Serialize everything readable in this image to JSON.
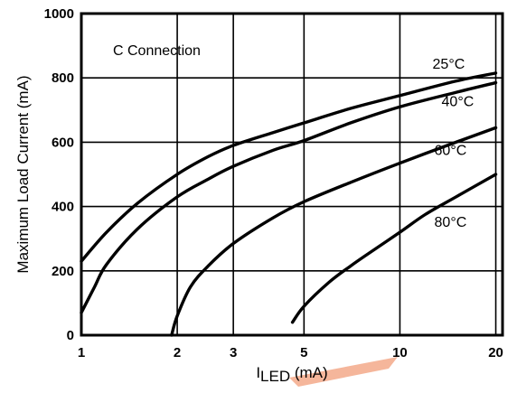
{
  "chart_data": {
    "type": "line",
    "xlabel_main": "I",
    "xlabel_sub": "LED",
    "xlabel_unit": " (mA)",
    "ylabel": "Maximum Load Current (mA)",
    "annotation": "C Connection",
    "x_scale": "log",
    "xlim": [
      1,
      21
    ],
    "ylim": [
      0,
      1000
    ],
    "x_ticks": [
      1,
      2,
      3,
      5,
      10,
      20
    ],
    "x_tick_labels": [
      "1",
      "2",
      "3",
      "5",
      "10",
      "20"
    ],
    "y_ticks": [
      0,
      200,
      400,
      600,
      800,
      1000
    ],
    "y_tick_labels": [
      "0",
      "200",
      "400",
      "600",
      "800",
      "1000"
    ],
    "grid": true,
    "series": [
      {
        "name": "25°C",
        "x": [
          1.0,
          1.2,
          1.5,
          2.0,
          2.5,
          3.0,
          4.0,
          5.0,
          7.0,
          10.0,
          15.0,
          20.0
        ],
        "y": [
          230,
          320,
          410,
          500,
          555,
          590,
          630,
          660,
          705,
          745,
          790,
          815
        ]
      },
      {
        "name": "40°C",
        "x": [
          1.0,
          1.1,
          1.2,
          1.5,
          2.0,
          2.5,
          3.0,
          4.0,
          5.0,
          7.0,
          10.0,
          15.0,
          20.0
        ],
        "y": [
          70,
          150,
          220,
          330,
          430,
          485,
          525,
          575,
          605,
          660,
          710,
          755,
          785
        ]
      },
      {
        "name": "60°C",
        "x": [
          1.92,
          2.0,
          2.2,
          2.5,
          3.0,
          4.0,
          5.0,
          7.0,
          10.0,
          15.0,
          20.0
        ],
        "y": [
          0,
          60,
          150,
          215,
          285,
          365,
          415,
          475,
          535,
          600,
          645
        ]
      },
      {
        "name": "80°C",
        "x": [
          4.6,
          5.0,
          6.0,
          7.0,
          8.0,
          10.0,
          12.0,
          15.0,
          20.0
        ],
        "y": [
          40,
          90,
          165,
          215,
          255,
          320,
          375,
          430,
          500
        ]
      }
    ]
  },
  "colors": {
    "line": "#000000",
    "watermark": "#f5b69b"
  }
}
